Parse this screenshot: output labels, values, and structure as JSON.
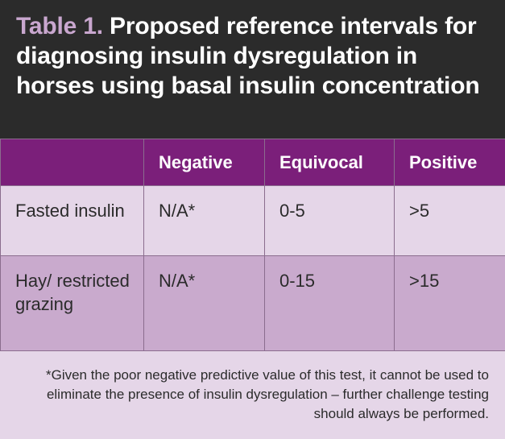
{
  "title": {
    "label": "Table 1.",
    "text": "Proposed reference intervals for diagnosing insulin dysregulation in horses using basal insulin concentration"
  },
  "table": {
    "headers": [
      "",
      "Negative",
      "Equivocal",
      "Positive"
    ],
    "rows": [
      [
        "Fasted insulin",
        "N/A*",
        "0-5",
        ">5"
      ],
      [
        "Hay/ restricted grazing",
        "N/A*",
        "0-15",
        ">15"
      ]
    ]
  },
  "footnote": "*Given the poor negative predictive value of this test, it cannot be used to eliminate the presence of insulin dysregulation – further challenge testing should always be performed.",
  "colors": {
    "header_bg": "#7b1f7a",
    "title_bg": "#2b2b2b",
    "title_accent": "#c9a7cf",
    "row_light": "#e5d6e8",
    "row_dark": "#c9aacd"
  }
}
